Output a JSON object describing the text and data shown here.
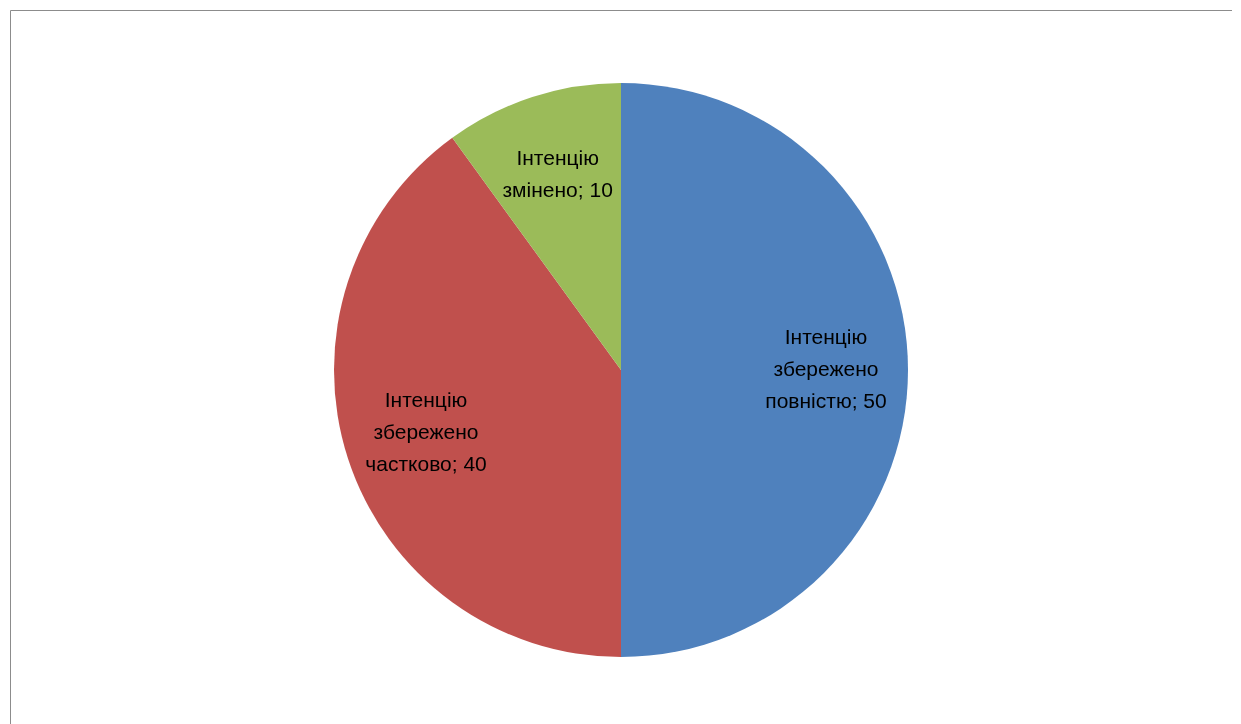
{
  "chart_data": {
    "type": "pie",
    "categories": [
      "Інтенцію збережено повністю",
      "Інтенцію збережено частково",
      "Інтенцію змінено"
    ],
    "values": [
      50,
      40,
      10
    ],
    "colors": [
      "#4f81bd",
      "#c0504d",
      "#9bbb59"
    ],
    "value_labels": [
      "; 50",
      "; 40",
      "; 10"
    ]
  }
}
